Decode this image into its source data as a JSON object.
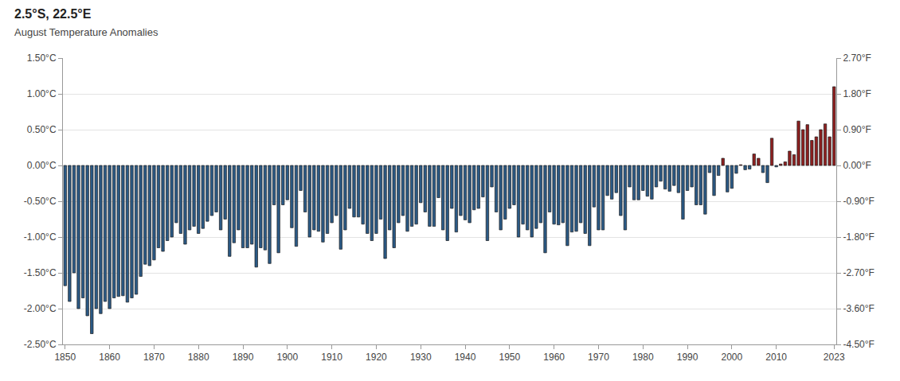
{
  "chart_data": {
    "type": "bar",
    "title": "2.5°S, 22.5°E",
    "subtitle": "August Temperature Anomalies",
    "x": [
      1850,
      1851,
      1852,
      1853,
      1854,
      1855,
      1856,
      1857,
      1858,
      1859,
      1860,
      1861,
      1862,
      1863,
      1864,
      1865,
      1866,
      1867,
      1868,
      1869,
      1870,
      1871,
      1872,
      1873,
      1874,
      1875,
      1876,
      1877,
      1878,
      1879,
      1880,
      1881,
      1882,
      1883,
      1884,
      1885,
      1886,
      1887,
      1888,
      1889,
      1890,
      1891,
      1892,
      1893,
      1894,
      1895,
      1896,
      1897,
      1898,
      1899,
      1900,
      1901,
      1902,
      1903,
      1904,
      1905,
      1906,
      1907,
      1908,
      1909,
      1910,
      1911,
      1912,
      1913,
      1914,
      1915,
      1916,
      1917,
      1918,
      1919,
      1920,
      1921,
      1922,
      1923,
      1924,
      1925,
      1926,
      1927,
      1928,
      1929,
      1930,
      1931,
      1932,
      1933,
      1934,
      1935,
      1936,
      1937,
      1938,
      1939,
      1940,
      1941,
      1942,
      1943,
      1944,
      1945,
      1946,
      1947,
      1948,
      1949,
      1950,
      1951,
      1952,
      1953,
      1954,
      1955,
      1956,
      1957,
      1958,
      1959,
      1960,
      1961,
      1962,
      1963,
      1964,
      1965,
      1966,
      1967,
      1968,
      1969,
      1970,
      1971,
      1972,
      1973,
      1974,
      1975,
      1976,
      1977,
      1978,
      1979,
      1980,
      1981,
      1982,
      1983,
      1984,
      1985,
      1986,
      1987,
      1988,
      1989,
      1990,
      1991,
      1992,
      1993,
      1994,
      1995,
      1996,
      1997,
      1998,
      1999,
      2000,
      2001,
      2002,
      2003,
      2004,
      2005,
      2006,
      2007,
      2008,
      2009,
      2010,
      2011,
      2012,
      2013,
      2014,
      2015,
      2016,
      2017,
      2018,
      2019,
      2020,
      2021,
      2022,
      2023
    ],
    "values": [
      -1.68,
      -1.9,
      -1.5,
      -2.0,
      -1.85,
      -2.1,
      -2.35,
      -2.0,
      -2.07,
      -1.9,
      -2.0,
      -1.85,
      -1.83,
      -1.82,
      -1.91,
      -1.85,
      -1.8,
      -1.55,
      -1.38,
      -1.4,
      -1.32,
      -1.15,
      -1.2,
      -1.05,
      -1.0,
      -0.8,
      -0.95,
      -1.1,
      -0.9,
      -0.85,
      -0.95,
      -0.88,
      -0.78,
      -0.7,
      -0.65,
      -0.9,
      -0.75,
      -1.27,
      -1.08,
      -0.9,
      -1.15,
      -1.15,
      -1.1,
      -1.42,
      -1.15,
      -1.18,
      -1.37,
      -0.55,
      -1.22,
      -0.55,
      -0.48,
      -0.87,
      -1.13,
      -0.35,
      -0.65,
      -1.0,
      -0.9,
      -0.92,
      -1.07,
      -0.95,
      -0.8,
      -0.7,
      -1.17,
      -0.9,
      -0.6,
      -0.72,
      -0.72,
      -0.82,
      -0.95,
      -1.05,
      -0.95,
      -0.75,
      -1.3,
      -0.9,
      -1.15,
      -0.8,
      -0.7,
      -0.92,
      -0.85,
      -0.82,
      -0.52,
      -0.65,
      -0.85,
      -0.85,
      -0.45,
      -0.9,
      -1.05,
      -0.6,
      -0.93,
      -0.7,
      -0.76,
      -0.8,
      -0.62,
      -0.6,
      -0.44,
      -1.05,
      -0.3,
      -0.65,
      -0.9,
      -0.75,
      -0.6,
      -0.55,
      -1.0,
      -0.82,
      -0.9,
      -1.0,
      -0.88,
      -0.8,
      -1.22,
      -0.65,
      -0.82,
      -0.83,
      -0.8,
      -1.12,
      -0.93,
      -0.92,
      -0.8,
      -0.95,
      -1.12,
      -0.58,
      -0.9,
      -0.9,
      -0.42,
      -0.47,
      -0.38,
      -0.7,
      -0.9,
      -0.3,
      -0.48,
      -0.48,
      -0.35,
      -0.43,
      -0.47,
      -0.3,
      -0.22,
      -0.33,
      -0.36,
      -0.28,
      -0.38,
      -0.75,
      -0.35,
      -0.3,
      -0.55,
      -0.55,
      -0.68,
      -0.1,
      -0.42,
      -0.14,
      0.1,
      -0.37,
      -0.32,
      -0.11,
      0.01,
      -0.06,
      -0.05,
      0.16,
      0.1,
      -0.1,
      -0.24,
      0.38,
      -0.02,
      0.02,
      0.05,
      0.2,
      0.15,
      0.62,
      0.5,
      0.57,
      0.35,
      0.4,
      0.5,
      0.58,
      0.4,
      1.1
    ],
    "colors": [
      "#2b5a86",
      "#2b5a86",
      "#2b5a86",
      "#2b5a86",
      "#2b5a86",
      "#2b5a86",
      "#2b5a86",
      "#2b5a86",
      "#2b5a86",
      "#2b5a86",
      "#2b5a86",
      "#2b5a86",
      "#2b5a86",
      "#2b5a86",
      "#2b5a86",
      "#2b5a86",
      "#2b5a86",
      "#2b5a86",
      "#2b5a86",
      "#2b5a86",
      "#2b5a86",
      "#2b5a86",
      "#2b5a86",
      "#2b5a86",
      "#2b5a86",
      "#2b5a86",
      "#2b5a86",
      "#2b5a86",
      "#2b5a86",
      "#2b5a86",
      "#2b5a86",
      "#2b5a86",
      "#2b5a86",
      "#2b5a86",
      "#2b5a86",
      "#2b5a86",
      "#2b5a86",
      "#2b5a86",
      "#2b5a86",
      "#2b5a86",
      "#2b5a86",
      "#2b5a86",
      "#2b5a86",
      "#2b5a86",
      "#2b5a86",
      "#2b5a86",
      "#2b5a86",
      "#2b5a86",
      "#2b5a86",
      "#2b5a86",
      "#2b5a86",
      "#2b5a86",
      "#2b5a86",
      "#2b5a86",
      "#2b5a86",
      "#2b5a86",
      "#2b5a86",
      "#2b5a86",
      "#2b5a86",
      "#2b5a86",
      "#2b5a86",
      "#2b5a86",
      "#2b5a86",
      "#2b5a86",
      "#2b5a86",
      "#2b5a86",
      "#2b5a86",
      "#2b5a86",
      "#2b5a86",
      "#2b5a86",
      "#2b5a86",
      "#2b5a86",
      "#2b5a86",
      "#2b5a86",
      "#2b5a86",
      "#2b5a86",
      "#2b5a86",
      "#2b5a86",
      "#2b5a86",
      "#2b5a86",
      "#2b5a86",
      "#2b5a86",
      "#2b5a86",
      "#2b5a86",
      "#2b5a86",
      "#2b5a86",
      "#2b5a86",
      "#2b5a86",
      "#2b5a86",
      "#2b5a86",
      "#2b5a86",
      "#2b5a86",
      "#2b5a86",
      "#2b5a86",
      "#2b5a86",
      "#2b5a86",
      "#2b5a86",
      "#2b5a86",
      "#2b5a86",
      "#2b5a86",
      "#2b5a86",
      "#2b5a86",
      "#2b5a86",
      "#2b5a86",
      "#2b5a86",
      "#2b5a86",
      "#2b5a86",
      "#2b5a86",
      "#2b5a86",
      "#2b5a86",
      "#2b5a86",
      "#2b5a86",
      "#2b5a86",
      "#2b5a86",
      "#2b5a86",
      "#2b5a86",
      "#2b5a86",
      "#2b5a86",
      "#2b5a86",
      "#2b5a86",
      "#2b5a86",
      "#2b5a86",
      "#2b5a86",
      "#2b5a86",
      "#2b5a86",
      "#2b5a86",
      "#2b5a86",
      "#2b5a86",
      "#2b5a86",
      "#2b5a86",
      "#2b5a86",
      "#2b5a86",
      "#2b5a86",
      "#2b5a86",
      "#2b5a86",
      "#2b5a86",
      "#2b5a86",
      "#2b5a86",
      "#2b5a86",
      "#2b5a86",
      "#2b5a86",
      "#2b5a86",
      "#2b5a86",
      "#2b5a86",
      "#2b5a86",
      "#2b5a86",
      "#2b5a86",
      "#2b5a86",
      "#8e1f1f",
      "#2b5a86",
      "#2b5a86",
      "#2b5a86",
      "#8e1f1f",
      "#2b5a86",
      "#2b5a86",
      "#8e1f1f",
      "#8e1f1f",
      "#2b5a86",
      "#2b5a86",
      "#8e1f1f",
      "#2b5a86",
      "#8e1f1f",
      "#8e1f1f",
      "#8e1f1f",
      "#8e1f1f",
      "#8e1f1f",
      "#8e1f1f",
      "#8e1f1f",
      "#8e1f1f",
      "#8e1f1f",
      "#8e1f1f",
      "#8e1f1f",
      "#8e1f1f",
      "#8e1f1f"
    ],
    "xlim": [
      1849.5,
      2023.5
    ],
    "xticks": [
      1850,
      1860,
      1870,
      1880,
      1890,
      1900,
      1910,
      1920,
      1930,
      1940,
      1950,
      1960,
      1970,
      1980,
      1990,
      2000,
      2010,
      2023
    ],
    "ylim": [
      -2.5,
      1.5
    ],
    "yticks": [
      {
        "value": -2.5,
        "label": "-2.50°C"
      },
      {
        "value": -2.0,
        "label": "-2.00°C"
      },
      {
        "value": -1.5,
        "label": "-1.50°C"
      },
      {
        "value": -1.0,
        "label": "-1.00°C"
      },
      {
        "value": -0.5,
        "label": "-0.50°C"
      },
      {
        "value": 0.0,
        "label": "0.00°C"
      },
      {
        "value": 0.5,
        "label": "0.50°C"
      },
      {
        "value": 1.0,
        "label": "1.00°C"
      },
      {
        "value": 1.5,
        "label": "1.50°C"
      }
    ],
    "y2lim": [
      -4.5,
      2.7
    ],
    "y2ticks": [
      {
        "value": -4.5,
        "label": "-4.50°F"
      },
      {
        "value": -3.6,
        "label": "-3.60°F"
      },
      {
        "value": -2.7,
        "label": "-2.70°F"
      },
      {
        "value": -1.8,
        "label": "-1.80°F"
      },
      {
        "value": -0.9,
        "label": "-0.90°F"
      },
      {
        "value": 0.0,
        "label": "0.00°F"
      },
      {
        "value": 0.9,
        "label": "0.90°F"
      },
      {
        "value": 1.8,
        "label": "1.80°F"
      },
      {
        "value": 2.7,
        "label": "2.70°F"
      }
    ],
    "grid": true
  }
}
